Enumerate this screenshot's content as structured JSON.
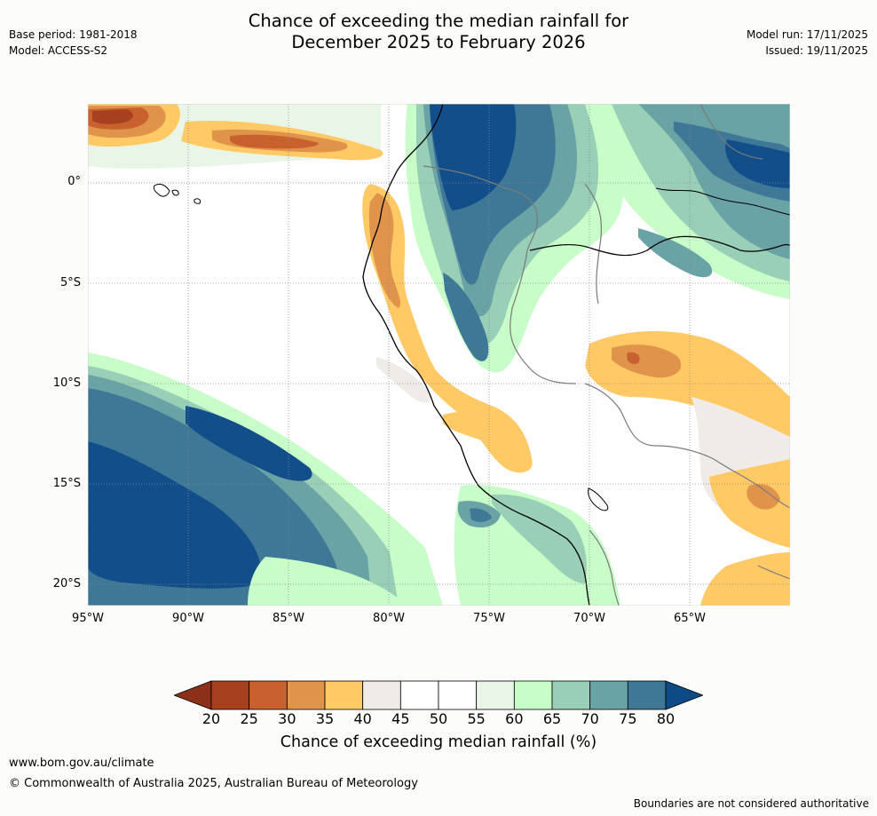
{
  "header": {
    "title_line1": "Chance of exceeding the median rainfall for",
    "title_line2": "December 2025 to February 2026",
    "base_period": "Base period: 1981-2018",
    "model": "Model: ACCESS-S2",
    "model_run": "Model run: 17/11/2025",
    "issued": "Issued: 19/11/2025"
  },
  "map": {
    "lat_labels": [
      "0°",
      "5°S",
      "10°S",
      "15°S",
      "20°S"
    ],
    "lon_labels": [
      "95°W",
      "90°W",
      "85°W",
      "80°W",
      "75°W",
      "70°W",
      "65°W"
    ],
    "grid_lats": [
      0,
      -5,
      -10,
      -15,
      -20
    ],
    "grid_lons": [
      -95,
      -90,
      -85,
      -80,
      -75,
      -70,
      -65
    ]
  },
  "legend": {
    "title": "Chance of exceeding median rainfall (%)",
    "ticks": [
      "20",
      "25",
      "30",
      "35",
      "40",
      "45",
      "50",
      "55",
      "60",
      "65",
      "70",
      "75",
      "80"
    ],
    "colors": [
      "#a6401f",
      "#c8612e",
      "#e0934a",
      "#ffc966",
      "#efebe6",
      "#ffffff",
      "#ffffff",
      "#e9f5e7",
      "#c8fcc8",
      "#99cfb6",
      "#6aa3a5",
      "#3f7896",
      "#124f8a"
    ],
    "under_color": "#8b3119",
    "over_color": "#0e4a86"
  },
  "footer": {
    "url": "www.bom.gov.au/climate",
    "copyright": "© Commonwealth of Australia 2025, Australian Bureau of Meteorology",
    "disclaimer": "Boundaries are not considered authoritative"
  }
}
